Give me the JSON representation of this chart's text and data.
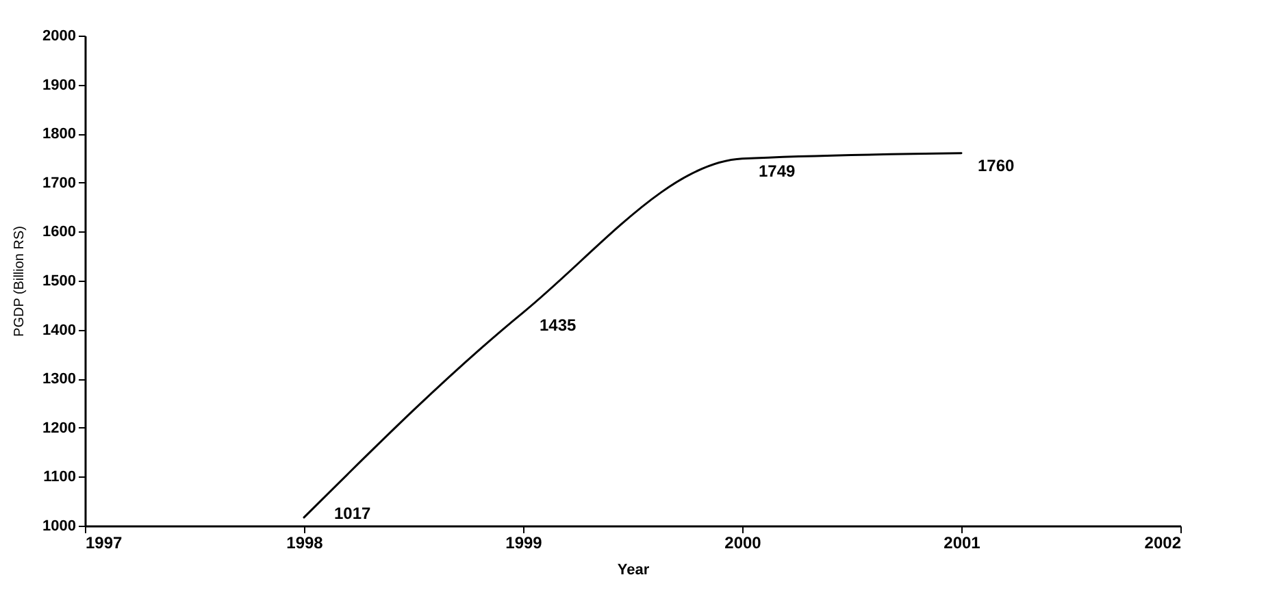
{
  "chart_data": {
    "type": "line",
    "xlabel": "Year",
    "ylabel": "PGDP (Billion RS)",
    "x": [
      1998,
      1999,
      2000,
      2001
    ],
    "series": [
      {
        "color": "#000000",
        "values": [
          1017,
          1435,
          1749,
          1760
        ]
      }
    ],
    "xlim": [
      1997,
      2002
    ],
    "xticks": [
      1997,
      1998,
      1999,
      2000,
      2001,
      2002
    ],
    "ylim": [
      1000,
      2000
    ],
    "yticks": [
      1000,
      1100,
      1200,
      1300,
      1400,
      1500,
      1600,
      1700,
      1800,
      1900,
      2000
    ],
    "grid": false,
    "legend": false,
    "marker": "none",
    "line_style": "solid",
    "data_labels": true
  }
}
